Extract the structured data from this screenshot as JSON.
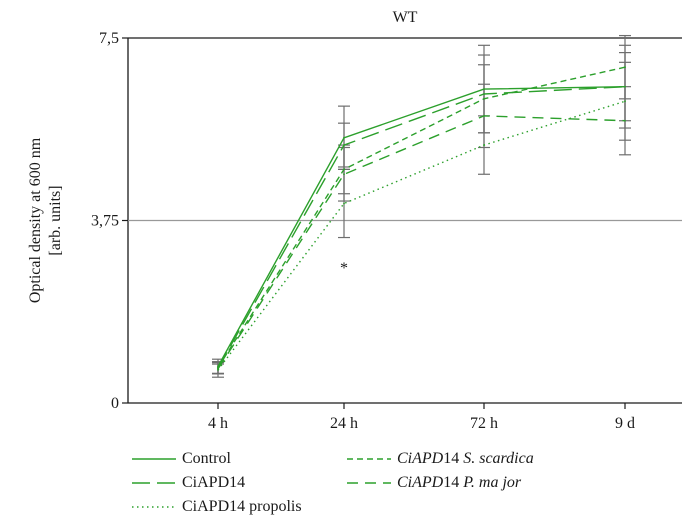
{
  "chart_data": {
    "type": "line",
    "title": "WT",
    "ylabel": "Optical density at 600 nm",
    "ylabel_unit": "[arb. units]",
    "categories": [
      "4 h",
      "24 h",
      "72 h",
      "9 d"
    ],
    "ylim": [
      0,
      7.5
    ],
    "y_ticks": [
      {
        "value": 0,
        "label": "0"
      },
      {
        "value": 3.75,
        "label": "3,75"
      },
      {
        "value": 7.5,
        "label": "7,5"
      }
    ],
    "reference_line": 3.75,
    "annotation": {
      "text": "*",
      "category": "24 h",
      "value": 3.0
    },
    "legend_placement": "bottom",
    "series": [
      {
        "name": "Control",
        "style": "solid",
        "color": "#2ca02c",
        "values": [
          0.75,
          5.45,
          6.45,
          6.5
        ],
        "errors": [
          0.15,
          0.65,
          0.9,
          0.85
        ]
      },
      {
        "name": "CiAPD14",
        "style": "long-dash",
        "color": "#2ca02c",
        "values": [
          0.72,
          5.3,
          6.35,
          6.5
        ],
        "errors": [
          0.12,
          0.45,
          0.8,
          0.7
        ]
      },
      {
        "name": "CiAPD14 propolis",
        "style": "dotted",
        "color": "#2ca02c",
        "values": [
          0.68,
          4.1,
          5.3,
          6.2
        ],
        "errors": [
          0.15,
          0.7,
          0.6,
          0.8
        ]
      },
      {
        "name": "CiAPD14 S. scardica",
        "name_parts": [
          {
            "text": "CiAPD",
            "italic": true
          },
          {
            "text": "14 ",
            "italic": false
          },
          {
            "text": "S. scardica",
            "italic": true
          }
        ],
        "style": "short-dash",
        "color": "#2ca02c",
        "values": [
          0.73,
          4.8,
          6.25,
          6.9
        ],
        "errors": [
          0.12,
          0.5,
          0.7,
          0.65
        ]
      },
      {
        "name": "CiAPD14 P. major",
        "name_parts": [
          {
            "text": "CiAPD",
            "italic": true
          },
          {
            "text": "14 ",
            "italic": false
          },
          {
            "text": "P. ma jor",
            "italic": true
          }
        ],
        "style": "medium-dash",
        "color": "#2ca02c",
        "values": [
          0.7,
          4.7,
          5.9,
          5.8
        ],
        "errors": [
          0.1,
          0.55,
          0.65,
          0.7
        ]
      }
    ],
    "colors": {
      "series": "#2ca02c",
      "error_bars": "#6e6e6e",
      "axis": "#1a1a1a",
      "reference": "#999999"
    }
  }
}
